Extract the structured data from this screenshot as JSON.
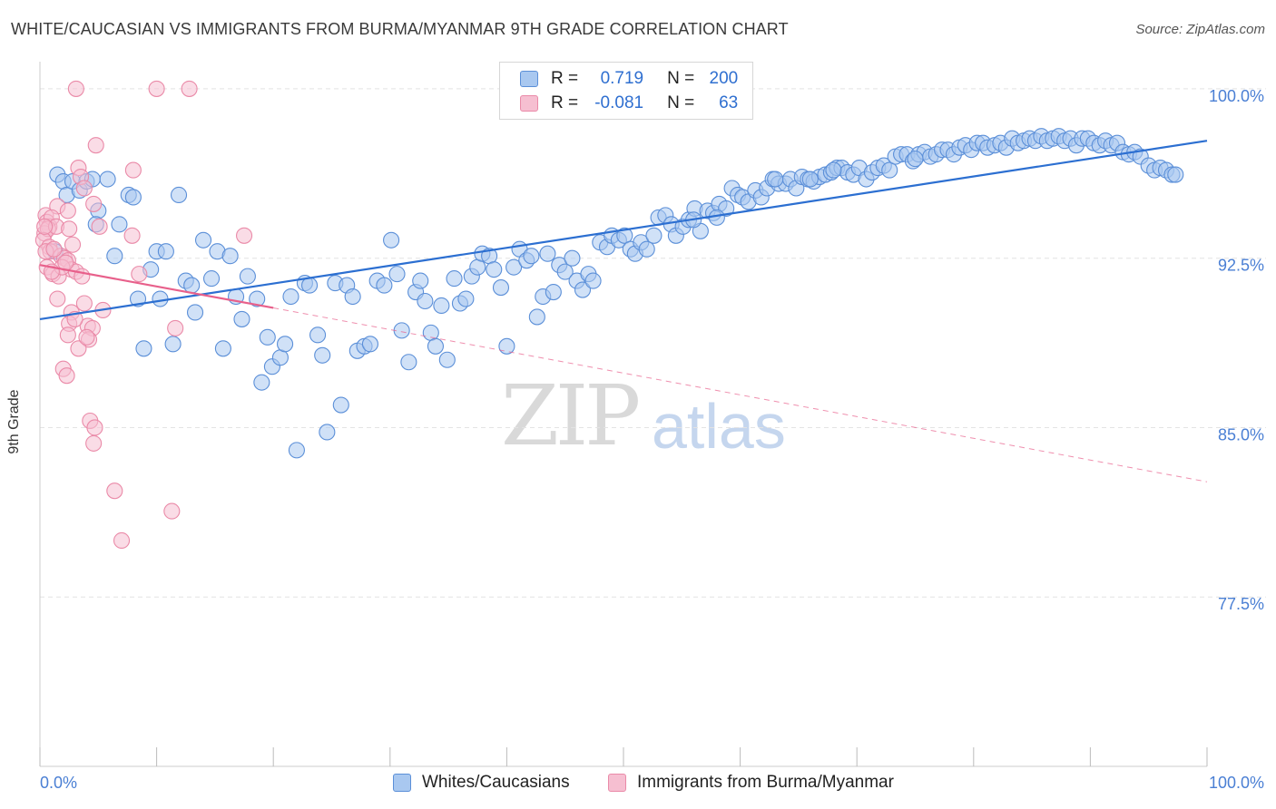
{
  "title": "WHITE/CAUCASIAN VS IMMIGRANTS FROM BURMA/MYANMAR 9TH GRADE CORRELATION CHART",
  "source": "Source: ZipAtlas.com",
  "watermark": {
    "zip": "ZIP",
    "atlas": "atlas"
  },
  "legend": {
    "rows": [
      {
        "r_label": "R =",
        "r_value": "0.719",
        "n_label": "N =",
        "n_value": "200"
      },
      {
        "r_label": "R =",
        "r_value": "-0.081",
        "n_label": "N =",
        "n_value": "63"
      }
    ]
  },
  "bottom_legend": [
    "Whites/Caucasians",
    "Immigrants from Burma/Myanmar"
  ],
  "colors": {
    "blue_fill": "#a9c8f0",
    "blue_stroke": "#5b8fd8",
    "blue_line": "#2c6fd1",
    "pink_fill": "#f6bfd1",
    "pink_stroke": "#ea8aa8",
    "pink_line": "#e8608b",
    "grid": "#e3e3e3",
    "tick_text": "#4a7fd4"
  },
  "chart_data": {
    "type": "scatter",
    "title": "WHITE/CAUCASIAN VS IMMIGRANTS FROM BURMA/MYANMAR 9TH GRADE CORRELATION CHART",
    "xlabel": "",
    "ylabel": "9th Grade",
    "xlim": [
      0,
      100
    ],
    "ylim": [
      70.0,
      100.8
    ],
    "x_tick_labels": [
      "0.0%",
      "100.0%"
    ],
    "y_ticks": [
      100.0,
      92.5,
      85.0,
      77.5
    ],
    "y_tick_labels": [
      "100.0%",
      "92.5%",
      "85.0%",
      "77.5%"
    ],
    "grid": true,
    "series": [
      {
        "name": "Whites/Caucasians",
        "trend": {
          "x": [
            0,
            100
          ],
          "y": [
            89.8,
            97.7
          ],
          "style": "solid"
        },
        "points": [
          [
            1.3,
            92.8
          ],
          [
            1.5,
            96.2
          ],
          [
            2.0,
            95.9
          ],
          [
            2.3,
            95.3
          ],
          [
            2.8,
            95.9
          ],
          [
            3.4,
            95.5
          ],
          [
            4.0,
            95.9
          ],
          [
            4.5,
            96.0
          ],
          [
            5.0,
            94.6
          ],
          [
            4.8,
            94.0
          ],
          [
            5.8,
            96.0
          ],
          [
            6.4,
            92.6
          ],
          [
            6.8,
            94.0
          ],
          [
            7.6,
            95.3
          ],
          [
            8.0,
            95.2
          ],
          [
            8.4,
            90.7
          ],
          [
            8.9,
            88.5
          ],
          [
            9.5,
            92.0
          ],
          [
            10.0,
            92.8
          ],
          [
            10.3,
            90.7
          ],
          [
            10.8,
            92.8
          ],
          [
            11.4,
            88.7
          ],
          [
            11.9,
            95.3
          ],
          [
            12.5,
            91.5
          ],
          [
            13.0,
            91.3
          ],
          [
            13.3,
            90.1
          ],
          [
            14.0,
            93.3
          ],
          [
            14.7,
            91.6
          ],
          [
            15.2,
            92.8
          ],
          [
            15.7,
            88.5
          ],
          [
            16.3,
            92.6
          ],
          [
            16.8,
            90.8
          ],
          [
            17.3,
            89.8
          ],
          [
            17.8,
            91.7
          ],
          [
            18.6,
            90.7
          ],
          [
            19.0,
            87.0
          ],
          [
            19.5,
            89.0
          ],
          [
            19.9,
            87.7
          ],
          [
            20.6,
            88.1
          ],
          [
            21.0,
            88.7
          ],
          [
            21.5,
            90.8
          ],
          [
            22.0,
            84.0
          ],
          [
            22.7,
            91.4
          ],
          [
            23.1,
            91.3
          ],
          [
            23.8,
            89.1
          ],
          [
            24.2,
            88.2
          ],
          [
            24.6,
            84.8
          ],
          [
            25.3,
            91.4
          ],
          [
            25.8,
            86.0
          ],
          [
            26.3,
            91.3
          ],
          [
            26.8,
            90.8
          ],
          [
            27.2,
            88.4
          ],
          [
            27.8,
            88.6
          ],
          [
            28.3,
            88.7
          ],
          [
            28.9,
            91.5
          ],
          [
            29.5,
            91.3
          ],
          [
            30.1,
            93.3
          ],
          [
            30.6,
            91.8
          ],
          [
            31.0,
            89.3
          ],
          [
            31.6,
            87.9
          ],
          [
            32.2,
            91.0
          ],
          [
            32.6,
            91.5
          ],
          [
            33.0,
            90.6
          ],
          [
            33.5,
            89.2
          ],
          [
            33.9,
            88.6
          ],
          [
            34.4,
            90.4
          ],
          [
            34.9,
            88.0
          ],
          [
            35.5,
            91.6
          ],
          [
            36.0,
            90.5
          ],
          [
            36.5,
            90.7
          ],
          [
            37.0,
            91.7
          ],
          [
            37.5,
            92.1
          ],
          [
            37.9,
            92.7
          ],
          [
            38.5,
            92.6
          ],
          [
            38.9,
            92.0
          ],
          [
            39.5,
            91.2
          ],
          [
            40.0,
            88.6
          ],
          [
            40.6,
            92.1
          ],
          [
            41.1,
            92.9
          ],
          [
            41.7,
            92.4
          ],
          [
            42.1,
            92.6
          ],
          [
            42.6,
            89.9
          ],
          [
            43.1,
            90.8
          ],
          [
            43.5,
            92.7
          ],
          [
            44.0,
            91.0
          ],
          [
            44.5,
            92.2
          ],
          [
            45.0,
            91.9
          ],
          [
            45.6,
            92.5
          ],
          [
            46.0,
            91.5
          ],
          [
            46.5,
            91.1
          ],
          [
            47.0,
            91.8
          ],
          [
            47.4,
            91.5
          ],
          [
            48.0,
            93.2
          ],
          [
            48.6,
            93.0
          ],
          [
            49.0,
            93.5
          ],
          [
            49.6,
            93.3
          ],
          [
            50.1,
            93.5
          ],
          [
            50.6,
            92.9
          ],
          [
            51.0,
            92.7
          ],
          [
            51.5,
            93.2
          ],
          [
            52.0,
            92.9
          ],
          [
            52.6,
            93.5
          ],
          [
            53.0,
            94.3
          ],
          [
            53.6,
            94.4
          ],
          [
            54.1,
            94.0
          ],
          [
            54.5,
            93.5
          ],
          [
            55.1,
            93.9
          ],
          [
            55.6,
            94.2
          ],
          [
            56.1,
            94.7
          ],
          [
            56.6,
            93.7
          ],
          [
            57.2,
            94.6
          ],
          [
            57.7,
            94.5
          ],
          [
            58.2,
            94.9
          ],
          [
            58.8,
            94.7
          ],
          [
            59.3,
            95.6
          ],
          [
            59.8,
            95.3
          ],
          [
            60.2,
            95.2
          ],
          [
            60.7,
            95.0
          ],
          [
            61.3,
            95.5
          ],
          [
            61.8,
            95.2
          ],
          [
            62.3,
            95.6
          ],
          [
            62.8,
            96.0
          ],
          [
            63.3,
            95.8
          ],
          [
            63.9,
            95.8
          ],
          [
            64.3,
            96.0
          ],
          [
            64.8,
            95.6
          ],
          [
            65.3,
            96.1
          ],
          [
            65.8,
            96.0
          ],
          [
            66.3,
            95.9
          ],
          [
            66.8,
            96.1
          ],
          [
            67.3,
            96.2
          ],
          [
            67.8,
            96.3
          ],
          [
            68.3,
            96.5
          ],
          [
            68.7,
            96.5
          ],
          [
            69.2,
            96.3
          ],
          [
            69.7,
            96.2
          ],
          [
            70.2,
            96.5
          ],
          [
            70.8,
            96.0
          ],
          [
            71.3,
            96.3
          ],
          [
            71.8,
            96.5
          ],
          [
            72.3,
            96.6
          ],
          [
            72.8,
            96.4
          ],
          [
            73.3,
            97.0
          ],
          [
            73.8,
            97.1
          ],
          [
            74.3,
            97.1
          ],
          [
            74.8,
            96.8
          ],
          [
            75.3,
            97.1
          ],
          [
            75.8,
            97.2
          ],
          [
            76.3,
            97.0
          ],
          [
            76.8,
            97.1
          ],
          [
            77.3,
            97.3
          ],
          [
            77.8,
            97.3
          ],
          [
            78.3,
            97.1
          ],
          [
            78.8,
            97.4
          ],
          [
            79.3,
            97.5
          ],
          [
            79.8,
            97.3
          ],
          [
            80.3,
            97.6
          ],
          [
            80.8,
            97.6
          ],
          [
            81.2,
            97.4
          ],
          [
            81.8,
            97.5
          ],
          [
            82.3,
            97.6
          ],
          [
            82.8,
            97.4
          ],
          [
            83.3,
            97.8
          ],
          [
            83.8,
            97.6
          ],
          [
            84.3,
            97.7
          ],
          [
            84.8,
            97.8
          ],
          [
            85.3,
            97.7
          ],
          [
            85.8,
            97.9
          ],
          [
            86.3,
            97.7
          ],
          [
            86.8,
            97.8
          ],
          [
            87.3,
            97.9
          ],
          [
            87.8,
            97.7
          ],
          [
            88.3,
            97.8
          ],
          [
            88.8,
            97.5
          ],
          [
            89.3,
            97.8
          ],
          [
            89.8,
            97.8
          ],
          [
            90.3,
            97.6
          ],
          [
            90.8,
            97.5
          ],
          [
            91.3,
            97.7
          ],
          [
            91.8,
            97.5
          ],
          [
            92.3,
            97.6
          ],
          [
            92.8,
            97.2
          ],
          [
            93.3,
            97.1
          ],
          [
            93.8,
            97.2
          ],
          [
            94.3,
            97.0
          ],
          [
            95.0,
            96.6
          ],
          [
            95.5,
            96.4
          ],
          [
            96.0,
            96.5
          ],
          [
            96.5,
            96.4
          ],
          [
            97.0,
            96.2
          ],
          [
            97.3,
            96.2
          ],
          [
            75.0,
            96.9
          ],
          [
            68.0,
            96.4
          ],
          [
            66.0,
            96.0
          ],
          [
            63.0,
            96.0
          ],
          [
            58.0,
            94.3
          ],
          [
            56.0,
            94.2
          ]
        ]
      },
      {
        "name": "Immigrants from Burma/Myanmar",
        "trend": {
          "x": [
            0,
            20
          ],
          "y": [
            92.2,
            90.3
          ],
          "style": "solid"
        },
        "trend_extended": {
          "x": [
            20,
            100
          ],
          "y": [
            90.3,
            82.6
          ],
          "style": "dashed"
        },
        "points": [
          [
            3.1,
            100.0
          ],
          [
            10.0,
            100.0
          ],
          [
            12.8,
            100.0
          ],
          [
            4.8,
            97.5
          ],
          [
            3.3,
            96.5
          ],
          [
            3.5,
            96.1
          ],
          [
            8.0,
            96.4
          ],
          [
            3.8,
            95.6
          ],
          [
            0.5,
            94.4
          ],
          [
            1.5,
            94.8
          ],
          [
            2.4,
            94.6
          ],
          [
            4.6,
            94.9
          ],
          [
            0.6,
            94.1
          ],
          [
            0.8,
            93.9
          ],
          [
            1.0,
            94.3
          ],
          [
            0.4,
            93.6
          ],
          [
            0.7,
            93.8
          ],
          [
            1.4,
            93.9
          ],
          [
            2.5,
            93.8
          ],
          [
            5.1,
            93.9
          ],
          [
            7.9,
            93.5
          ],
          [
            0.3,
            93.3
          ],
          [
            0.8,
            93.0
          ],
          [
            2.8,
            93.1
          ],
          [
            0.9,
            92.8
          ],
          [
            1.8,
            92.6
          ],
          [
            2.1,
            92.5
          ],
          [
            2.4,
            92.4
          ],
          [
            2.7,
            92.0
          ],
          [
            3.1,
            91.9
          ],
          [
            0.6,
            92.1
          ],
          [
            1.1,
            91.8
          ],
          [
            1.6,
            91.7
          ],
          [
            3.6,
            91.7
          ],
          [
            8.5,
            91.8
          ],
          [
            17.5,
            93.5
          ],
          [
            1.5,
            90.7
          ],
          [
            2.7,
            90.1
          ],
          [
            5.4,
            90.2
          ],
          [
            2.5,
            89.6
          ],
          [
            4.1,
            89.5
          ],
          [
            4.5,
            89.4
          ],
          [
            2.4,
            89.1
          ],
          [
            4.2,
            88.9
          ],
          [
            11.6,
            89.4
          ],
          [
            3.3,
            88.5
          ],
          [
            2.0,
            87.6
          ],
          [
            2.3,
            87.3
          ],
          [
            4.3,
            85.3
          ],
          [
            4.7,
            85.0
          ],
          [
            4.6,
            84.3
          ],
          [
            6.4,
            82.2
          ],
          [
            11.3,
            81.3
          ],
          [
            7.0,
            80.0
          ],
          [
            0.4,
            93.9
          ],
          [
            0.5,
            92.8
          ],
          [
            1.2,
            92.9
          ],
          [
            1.9,
            92.1
          ],
          [
            2.2,
            92.3
          ],
          [
            3.0,
            89.8
          ],
          [
            3.8,
            90.5
          ],
          [
            4.0,
            89.0
          ],
          [
            1.0,
            91.9
          ]
        ]
      }
    ]
  }
}
